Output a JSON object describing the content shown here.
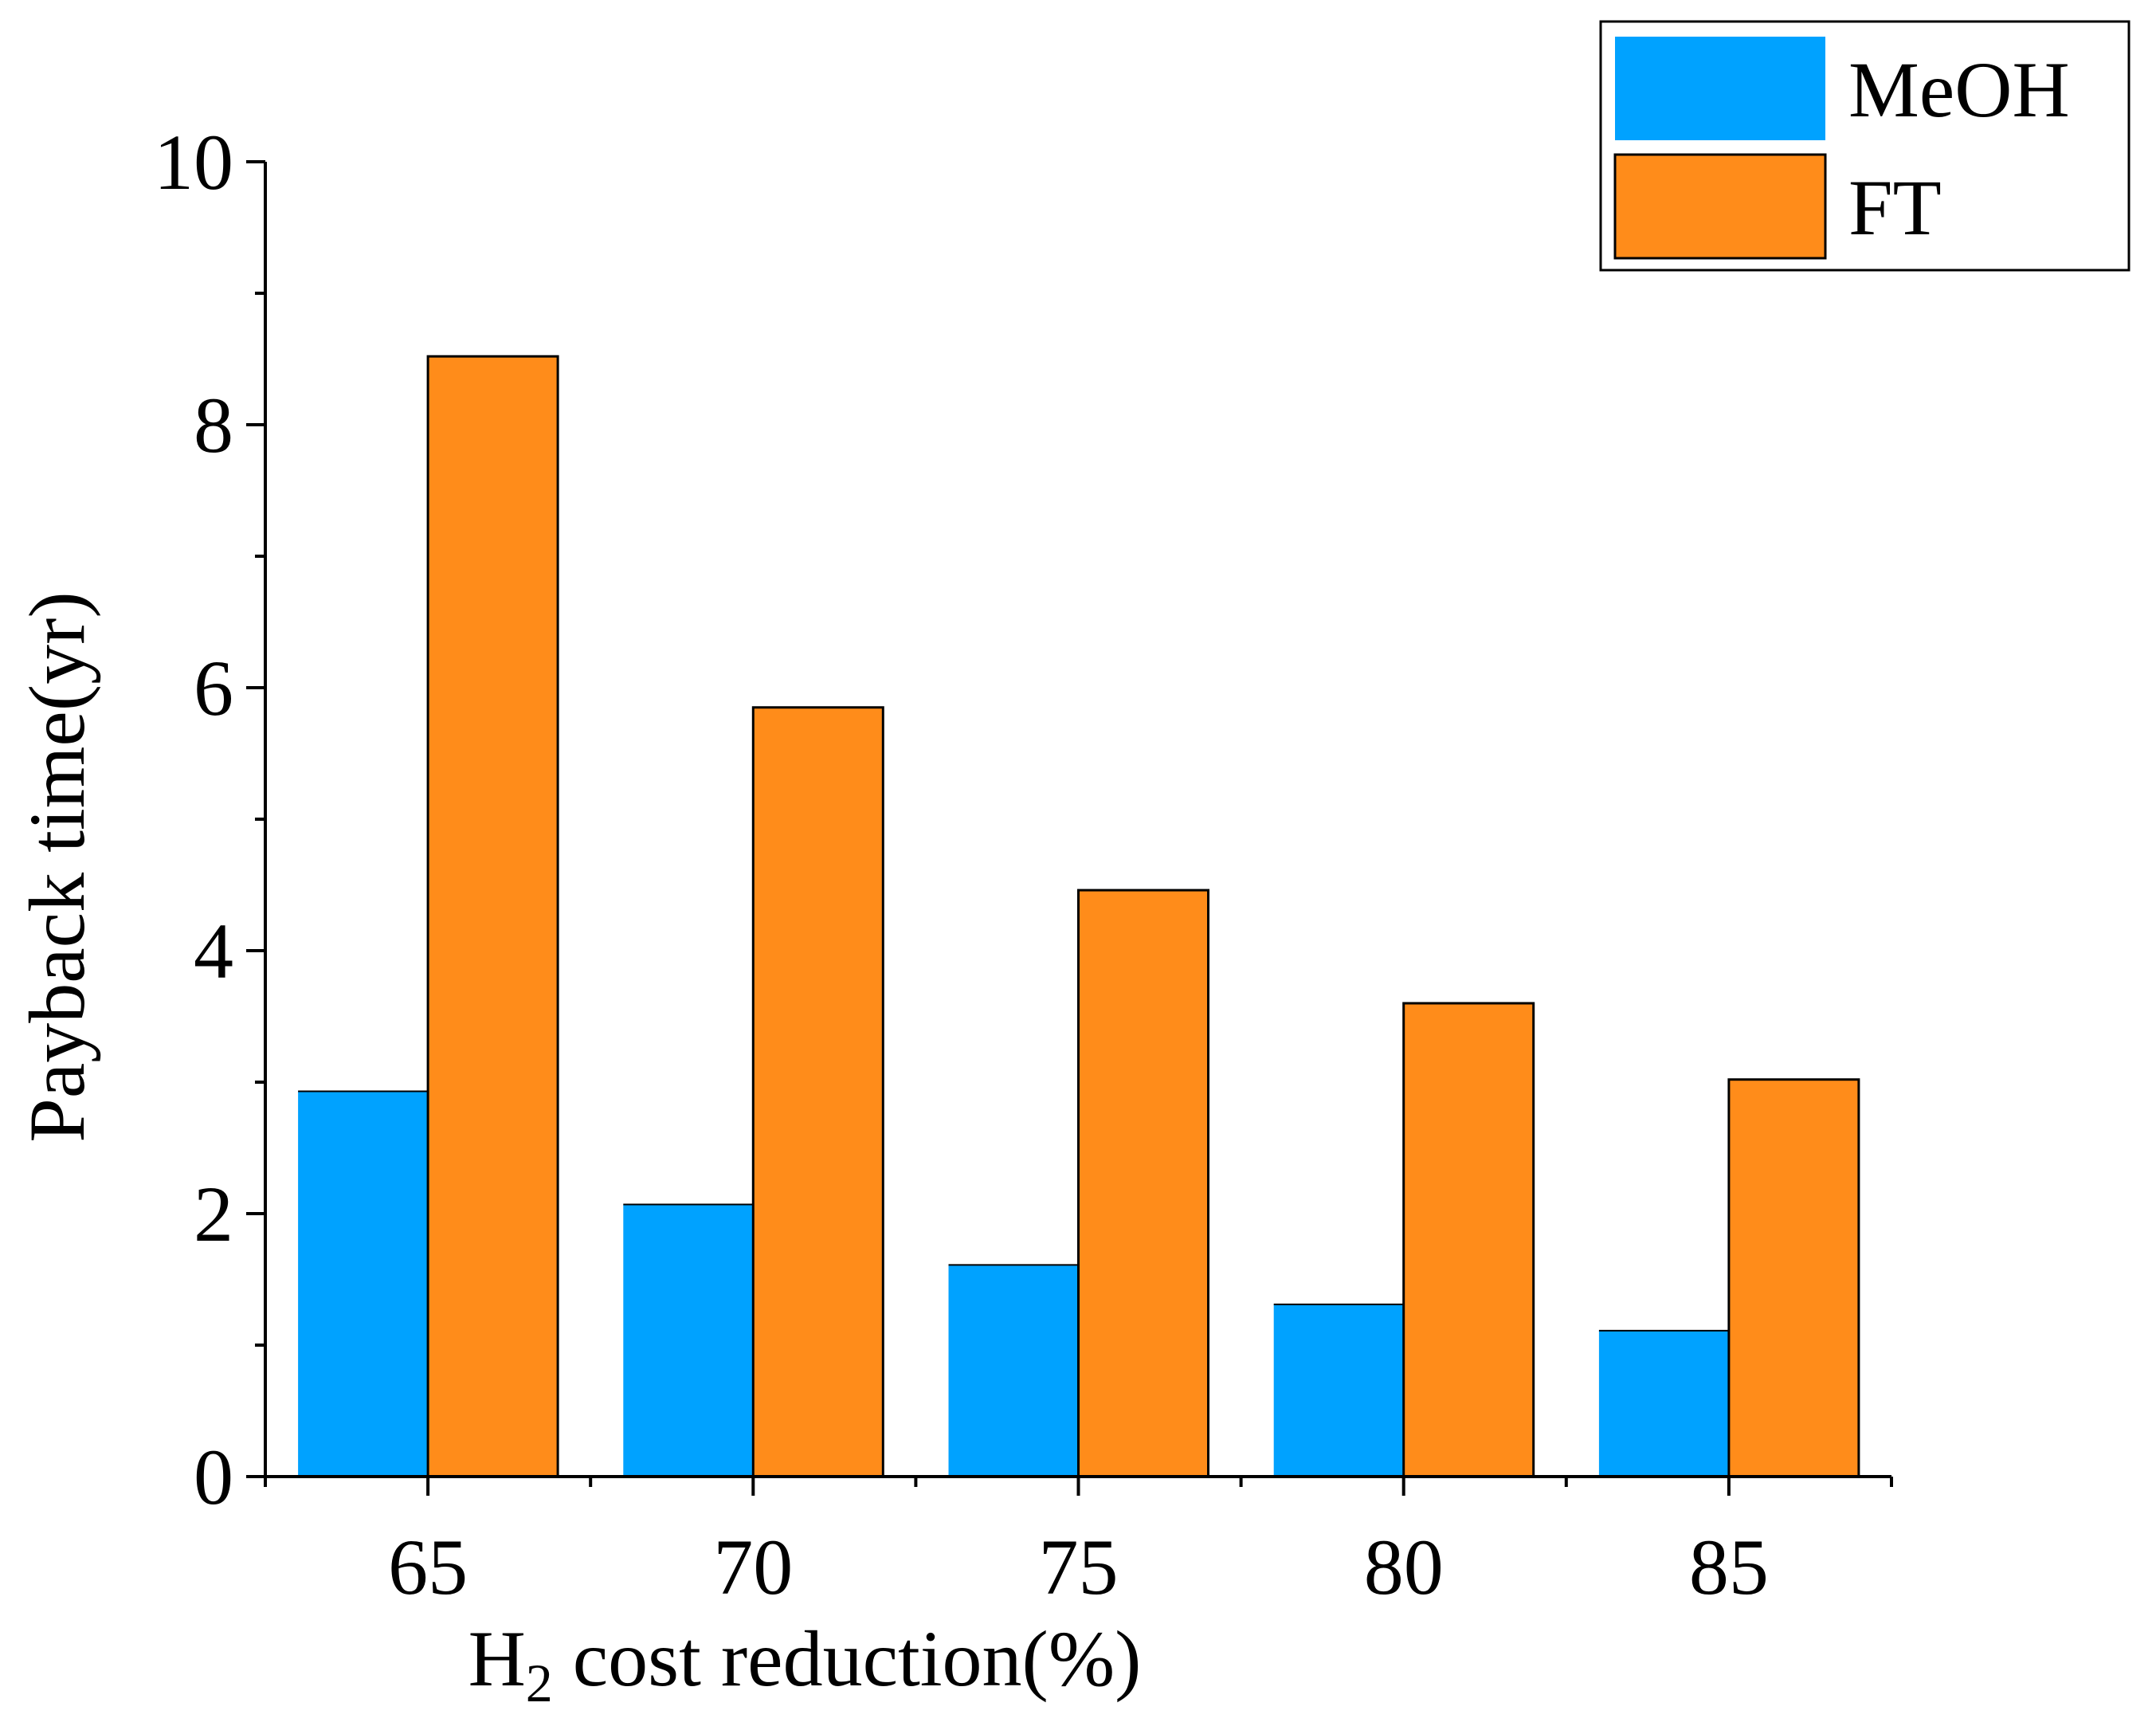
{
  "chart_data": {
    "type": "bar",
    "title": "",
    "xlabel": {
      "prefix": "H",
      "subscript": "2",
      "suffix": " cost reduction(%)"
    },
    "ylabel": "Payback time(yr)",
    "categories": [
      "65",
      "70",
      "75",
      "80",
      "85"
    ],
    "series": [
      {
        "name": "MeOH",
        "color": "#00a2ff",
        "values": [
          2.93,
          2.07,
          1.61,
          1.31,
          1.11
        ]
      },
      {
        "name": "FT",
        "color": "#ff8c1a",
        "values": [
          8.52,
          5.85,
          4.46,
          3.6,
          3.02
        ]
      }
    ],
    "ylim": [
      0,
      10
    ],
    "yticks": [
      0,
      2,
      4,
      6,
      8,
      10
    ],
    "yminor_step": 1,
    "grid": false,
    "legend_position": "top-right"
  }
}
